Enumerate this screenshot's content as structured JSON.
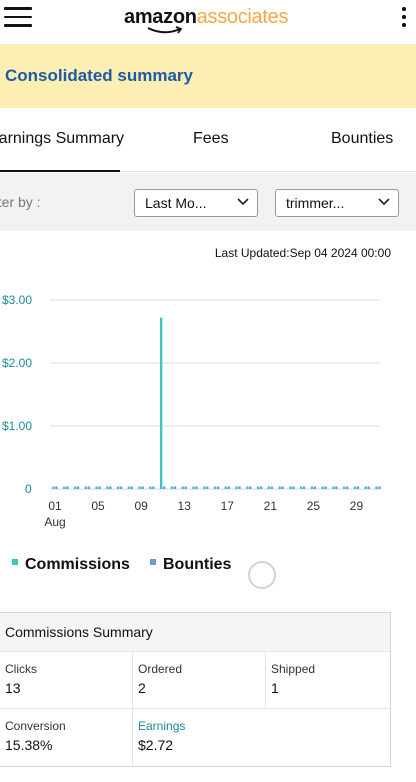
{
  "header": {
    "logo_amazon": "amazon",
    "logo_associates": "associates"
  },
  "banner": {
    "title": "Consolidated summary"
  },
  "tabs": [
    {
      "label": "Earnings Summary",
      "active": true
    },
    {
      "label": "Fees",
      "active": false
    },
    {
      "label": "Bounties",
      "active": false
    }
  ],
  "filter": {
    "label": "Filter by :",
    "period_value": "Last Mo...",
    "tracking_value": "trimmer..."
  },
  "last_updated": "Last Updated:Sep 04 2024 00:00",
  "colors": {
    "commissions": "#3cc3c2",
    "bounties": "#6c9bd2",
    "banner_bg": "#fdeeb4",
    "title_blue": "#1e5aa8"
  },
  "chart_data": {
    "type": "bar",
    "y_tick_labels": [
      "0",
      "$1.00",
      "$2.00",
      "$3.00"
    ],
    "y_ticks": [
      0,
      1,
      2,
      3
    ],
    "ylim": [
      0,
      3
    ],
    "x_tick_labels": [
      "01",
      "05",
      "09",
      "13",
      "17",
      "21",
      "25",
      "29"
    ],
    "x_tick_days": [
      1,
      5,
      9,
      13,
      17,
      21,
      25,
      29
    ],
    "x_sublabel": "Aug",
    "x_day_range": [
      1,
      31
    ],
    "grid": true,
    "legend_position": "bottom-left",
    "series": [
      {
        "name": "Commissions",
        "days": [
          1,
          2,
          3,
          4,
          5,
          6,
          7,
          8,
          9,
          10,
          11,
          12,
          13,
          14,
          15,
          16,
          17,
          18,
          19,
          20,
          21,
          22,
          23,
          24,
          25,
          26,
          27,
          28,
          29,
          30,
          31
        ],
        "values": [
          0,
          0,
          0,
          0,
          0,
          0,
          0,
          0,
          0,
          0,
          2.72,
          0,
          0,
          0,
          0,
          0,
          0,
          0,
          0,
          0,
          0,
          0,
          0,
          0,
          0,
          0,
          0,
          0,
          0,
          0,
          0
        ]
      },
      {
        "name": "Bounties",
        "days": [
          1,
          2,
          3,
          4,
          5,
          6,
          7,
          8,
          9,
          10,
          11,
          12,
          13,
          14,
          15,
          16,
          17,
          18,
          19,
          20,
          21,
          22,
          23,
          24,
          25,
          26,
          27,
          28,
          29,
          30,
          31
        ],
        "values": [
          0,
          0,
          0,
          0,
          0,
          0,
          0,
          0,
          0,
          0,
          0,
          0,
          0,
          0,
          0,
          0,
          0,
          0,
          0,
          0,
          0,
          0,
          0,
          0,
          0,
          0,
          0,
          0,
          0,
          0,
          0
        ]
      }
    ]
  },
  "legend": [
    {
      "label": "Commissions"
    },
    {
      "label": "Bounties"
    }
  ],
  "summary": {
    "title": "Commissions Summary",
    "cells": [
      {
        "label": "Clicks",
        "value": "13"
      },
      {
        "label": "Ordered",
        "value": "2"
      },
      {
        "label": "Shipped",
        "value": "1"
      },
      {
        "label": "Conversion",
        "value": "15.38%"
      },
      {
        "label": "Earnings",
        "value": "$2.72"
      }
    ]
  }
}
